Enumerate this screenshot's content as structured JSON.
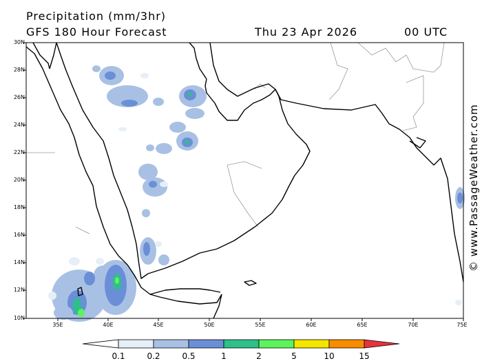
{
  "header": {
    "title": "Precipitation (mm/3hr)",
    "subtitle": "GFS 180 Hour Forecast",
    "date": "Thu 23 Apr 2026",
    "time": "00 UTC"
  },
  "map": {
    "lat_labels": [
      "30N",
      "28N",
      "26N",
      "24N",
      "22N",
      "20N",
      "18N",
      "16N",
      "14N",
      "12N",
      "10N"
    ],
    "lon_labels": [
      "35E",
      "40E",
      "45E",
      "50E",
      "55E",
      "60E",
      "65E",
      "70E",
      "75E"
    ],
    "land_color": "#ffffff",
    "coast_color": "#000000",
    "border_color": "#9a9a9a"
  },
  "legend": {
    "labels": [
      "0.1",
      "0.2",
      "0.5",
      "1",
      "2",
      "5",
      "10",
      "15"
    ],
    "colors": [
      "#ffffff",
      "#e6eef8",
      "#a8c0e3",
      "#6a8fd7",
      "#2ebf8a",
      "#5cf35c",
      "#f5e600",
      "#fa8c00",
      "#e8323c"
    ]
  },
  "credit": "© www.PassageWeather.com"
}
